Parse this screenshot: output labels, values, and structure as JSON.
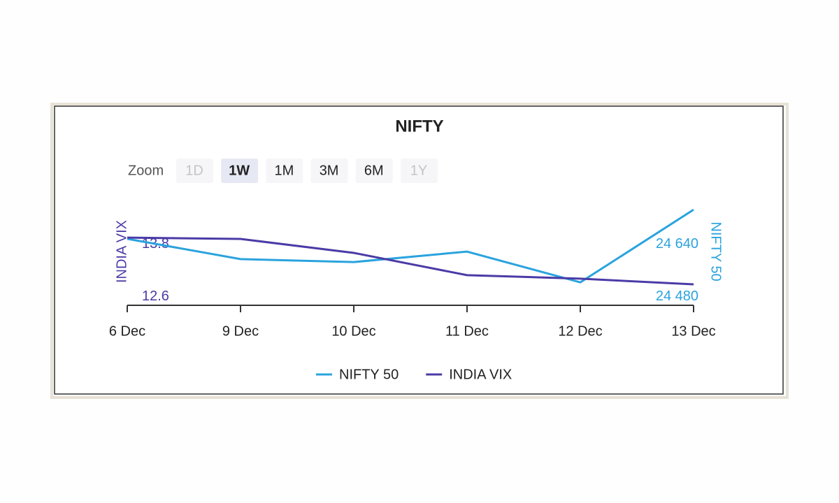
{
  "chart_data": {
    "type": "line",
    "title": "NIFTY",
    "categories": [
      "6 Dec",
      "9 Dec",
      "10 Dec",
      "11 Dec",
      "12 Dec",
      "13 Dec"
    ],
    "series": [
      {
        "name": "NIFTY 50",
        "color": "#2aa3de",
        "axis": "y2",
        "values": [
          24657,
          24595,
          24586,
          24618,
          24524,
          24746
        ]
      },
      {
        "name": "INDIA VIX",
        "color": "#4a3ba6",
        "values": [
          13.95,
          13.92,
          13.6,
          13.09,
          13.01,
          12.88
        ]
      }
    ],
    "ylabel": "INDIA VIX",
    "y2label": "NIFTY 50",
    "ylim": [
      12.4,
      14.8
    ],
    "yticks": [
      12.6,
      13.8
    ],
    "y2lim": [
      24454,
      24774
    ],
    "y2ticks": [
      {
        "value": 24480,
        "label": "24 480"
      },
      {
        "value": 24640,
        "label": "24 640"
      }
    ],
    "grid": false,
    "legend": "bottom"
  },
  "zoom": {
    "label": "Zoom",
    "buttons": [
      {
        "label": "1D",
        "state": "disabled"
      },
      {
        "label": "1W",
        "state": "selected"
      },
      {
        "label": "1M",
        "state": "normal"
      },
      {
        "label": "3M",
        "state": "normal"
      },
      {
        "label": "6M",
        "state": "normal"
      },
      {
        "label": "1Y",
        "state": "disabled"
      }
    ]
  }
}
